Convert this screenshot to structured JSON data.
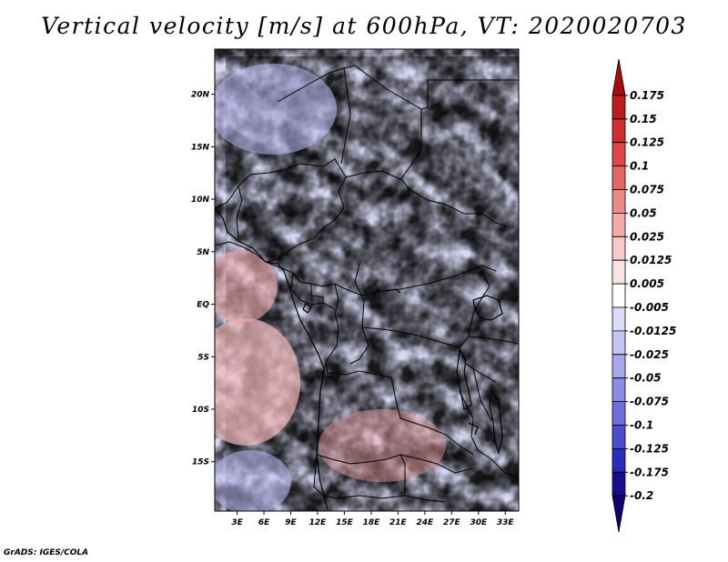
{
  "chart_data": {
    "type": "heatmap",
    "title": "Vertical velocity [m/s] at 600hPa, VT: 2020020703",
    "x_ticks": [
      "3E",
      "6E",
      "9E",
      "12E",
      "15E",
      "18E",
      "21E",
      "24E",
      "27E",
      "30E",
      "33E"
    ],
    "x_tick_values": [
      3,
      6,
      9,
      12,
      15,
      18,
      21,
      24,
      27,
      30,
      33
    ],
    "y_ticks": [
      "20N",
      "15N",
      "10N",
      "5N",
      "EQ",
      "5S",
      "10S",
      "15S"
    ],
    "y_tick_values": [
      20,
      15,
      10,
      5,
      0,
      -5,
      -10,
      -15
    ],
    "xlim": [
      0.5,
      34.5
    ],
    "ylim": [
      -19.7,
      24.3
    ],
    "colorbar": {
      "labels": [
        "0.175",
        "0.15",
        "0.125",
        "0.1",
        "0.075",
        "0.05",
        "0.025",
        "0.0125",
        "0.005",
        "-0.005",
        "-0.0125",
        "-0.025",
        "-0.05",
        "-0.075",
        "-0.1",
        "-0.125",
        "-0.175",
        "-0.2"
      ],
      "colors": [
        "#a01010",
        "#bb1e1e",
        "#d12d2d",
        "#de4848",
        "#e56868",
        "#ec8a8a",
        "#f2aaaa",
        "#f7c9c9",
        "#fbe3e3",
        "#ffffff",
        "#dcdcf8",
        "#c4c4f4",
        "#a8a8ee",
        "#8c8ce6",
        "#6e6edc",
        "#4c4cce",
        "#2c2cbc",
        "#1a0a8c",
        "#0e0070"
      ]
    }
  },
  "footer": {
    "credit": "GrADS: IGES/COLA"
  },
  "colors": {
    "frame": "#000000",
    "border": "#000000"
  }
}
